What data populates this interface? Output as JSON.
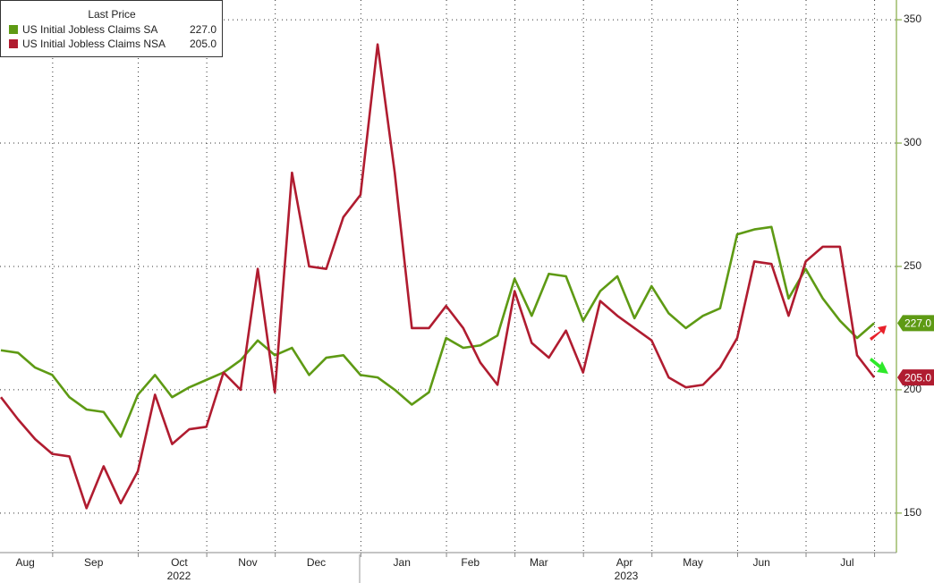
{
  "chart_data": {
    "type": "line",
    "legend_title": "Last Price",
    "categories": [
      null,
      "Aug",
      null,
      null,
      null,
      "Sep",
      null,
      null,
      null,
      null,
      "Oct",
      null,
      null,
      null,
      "Nov",
      null,
      null,
      null,
      "Dec",
      null,
      null,
      null,
      null,
      "Jan",
      null,
      null,
      null,
      "Feb",
      null,
      null,
      null,
      "Mar",
      null,
      null,
      null,
      null,
      "Apr",
      null,
      null,
      null,
      "May",
      null,
      null,
      null,
      "Jun",
      null,
      null,
      null,
      null,
      "Jul",
      null,
      null
    ],
    "x_groups": [
      "2022",
      "2023"
    ],
    "series": [
      {
        "name": "US Initial Jobless Claims SA",
        "color": "#5e9a14",
        "last_label": "227.0",
        "values": [
          216,
          215,
          209,
          206,
          197,
          192,
          191,
          181,
          198,
          206,
          197,
          201,
          204,
          207,
          212,
          220,
          214,
          217,
          206,
          213,
          214,
          206,
          205,
          200,
          194,
          199,
          221,
          217,
          218,
          222,
          245,
          230,
          247,
          246,
          228,
          240,
          246,
          229,
          242,
          231,
          225,
          230,
          233,
          263,
          265,
          266,
          237,
          249,
          237,
          228,
          221,
          227
        ]
      },
      {
        "name": "US Initial Jobless Claims NSA",
        "color": "#b01c30",
        "last_label": "205.0",
        "values": [
          197,
          188,
          180,
          174,
          173,
          152,
          169,
          154,
          167,
          198,
          178,
          184,
          185,
          207,
          200,
          249,
          199,
          288,
          250,
          249,
          270,
          279,
          340,
          288,
          225,
          225,
          234,
          225,
          211,
          202,
          240,
          219,
          213,
          224,
          207,
          236,
          230,
          225,
          220,
          205,
          201,
          202,
          209,
          221,
          252,
          251,
          230,
          252,
          258,
          258,
          214,
          205
        ]
      }
    ],
    "ylim": [
      134,
      358
    ],
    "yticks": [
      150,
      200,
      250,
      300,
      350
    ],
    "grid": true
  }
}
